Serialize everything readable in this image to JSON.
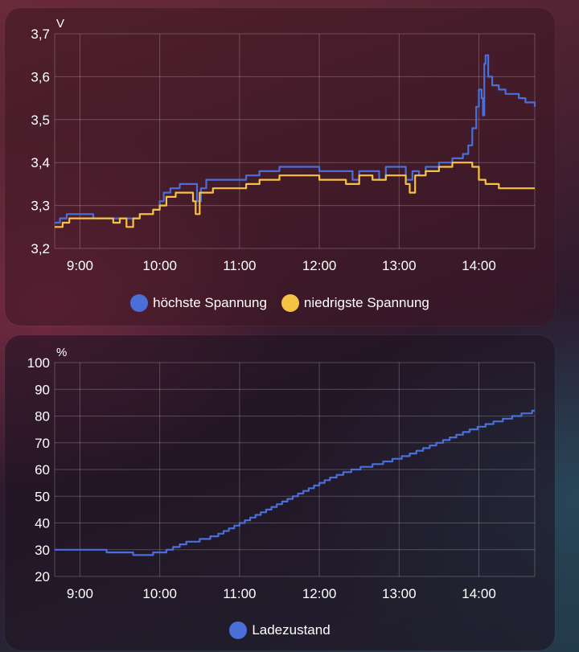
{
  "chart_data": [
    {
      "type": "line",
      "ylabel": "V",
      "ylim": [
        3.2,
        3.7
      ],
      "yticks": [
        "3,7",
        "3,6",
        "3,5",
        "3,4",
        "3,3",
        "3,2"
      ],
      "ytick_values": [
        3.7,
        3.6,
        3.5,
        3.4,
        3.3,
        3.2
      ],
      "xlim": [
        "08:41",
        "14:42"
      ],
      "xticks": [
        "9:00",
        "10:00",
        "11:00",
        "12:00",
        "13:00",
        "14:00"
      ],
      "grid": true,
      "legend": "bottom-center",
      "series": [
        {
          "name": "höchste Spannung",
          "color": "#4a6fd8",
          "step": true,
          "points": [
            [
              "08:41",
              3.26
            ],
            [
              "08:45",
              3.27
            ],
            [
              "08:50",
              3.28
            ],
            [
              "09:05",
              3.28
            ],
            [
              "09:10",
              3.27
            ],
            [
              "09:30",
              3.27
            ],
            [
              "09:40",
              3.27
            ],
            [
              "09:45",
              3.28
            ],
            [
              "09:55",
              3.29
            ],
            [
              "10:00",
              3.31
            ],
            [
              "10:03",
              3.33
            ],
            [
              "10:08",
              3.34
            ],
            [
              "10:15",
              3.35
            ],
            [
              "10:25",
              3.35
            ],
            [
              "10:28",
              3.31
            ],
            [
              "10:31",
              3.34
            ],
            [
              "10:35",
              3.36
            ],
            [
              "10:50",
              3.36
            ],
            [
              "11:00",
              3.36
            ],
            [
              "11:05",
              3.37
            ],
            [
              "11:15",
              3.38
            ],
            [
              "11:30",
              3.39
            ],
            [
              "11:45",
              3.39
            ],
            [
              "12:00",
              3.38
            ],
            [
              "12:10",
              3.38
            ],
            [
              "12:20",
              3.38
            ],
            [
              "12:25",
              3.36
            ],
            [
              "12:30",
              3.38
            ],
            [
              "12:40",
              3.38
            ],
            [
              "12:45",
              3.36
            ],
            [
              "12:50",
              3.39
            ],
            [
              "13:00",
              3.39
            ],
            [
              "13:05",
              3.36
            ],
            [
              "13:10",
              3.38
            ],
            [
              "13:15",
              3.37
            ],
            [
              "13:20",
              3.39
            ],
            [
              "13:30",
              3.4
            ],
            [
              "13:40",
              3.41
            ],
            [
              "13:48",
              3.42
            ],
            [
              "13:52",
              3.44
            ],
            [
              "13:55",
              3.48
            ],
            [
              "13:58",
              3.53
            ],
            [
              "14:00",
              3.57
            ],
            [
              "14:02",
              3.55
            ],
            [
              "14:03",
              3.51
            ],
            [
              "14:04",
              3.63
            ],
            [
              "14:05",
              3.65
            ],
            [
              "14:07",
              3.6
            ],
            [
              "14:10",
              3.58
            ],
            [
              "14:15",
              3.57
            ],
            [
              "14:20",
              3.56
            ],
            [
              "14:30",
              3.55
            ],
            [
              "14:35",
              3.54
            ],
            [
              "14:40",
              3.54
            ],
            [
              "14:42",
              3.53
            ]
          ]
        },
        {
          "name": "niedrigste Spannung",
          "color": "#f6c244",
          "step": true,
          "points": [
            [
              "08:41",
              3.25
            ],
            [
              "08:47",
              3.26
            ],
            [
              "08:52",
              3.27
            ],
            [
              "09:05",
              3.27
            ],
            [
              "09:15",
              3.27
            ],
            [
              "09:25",
              3.26
            ],
            [
              "09:30",
              3.27
            ],
            [
              "09:35",
              3.25
            ],
            [
              "09:40",
              3.27
            ],
            [
              "09:45",
              3.28
            ],
            [
              "09:55",
              3.29
            ],
            [
              "10:00",
              3.3
            ],
            [
              "10:05",
              3.32
            ],
            [
              "10:12",
              3.33
            ],
            [
              "10:20",
              3.33
            ],
            [
              "10:25",
              3.31
            ],
            [
              "10:27",
              3.28
            ],
            [
              "10:30",
              3.33
            ],
            [
              "10:40",
              3.34
            ],
            [
              "10:55",
              3.34
            ],
            [
              "11:05",
              3.35
            ],
            [
              "11:15",
              3.36
            ],
            [
              "11:30",
              3.37
            ],
            [
              "11:45",
              3.37
            ],
            [
              "12:00",
              3.36
            ],
            [
              "12:10",
              3.36
            ],
            [
              "12:20",
              3.35
            ],
            [
              "12:30",
              3.37
            ],
            [
              "12:40",
              3.36
            ],
            [
              "12:50",
              3.37
            ],
            [
              "13:00",
              3.37
            ],
            [
              "13:05",
              3.35
            ],
            [
              "13:08",
              3.33
            ],
            [
              "13:12",
              3.37
            ],
            [
              "13:20",
              3.38
            ],
            [
              "13:30",
              3.39
            ],
            [
              "13:40",
              3.4
            ],
            [
              "13:50",
              3.4
            ],
            [
              "13:55",
              3.39
            ],
            [
              "14:00",
              3.36
            ],
            [
              "14:05",
              3.35
            ],
            [
              "14:10",
              3.35
            ],
            [
              "14:15",
              3.34
            ],
            [
              "14:42",
              3.34
            ]
          ]
        }
      ]
    },
    {
      "type": "line",
      "ylabel": "%",
      "ylim": [
        20,
        100
      ],
      "yticks": [
        "100",
        "90",
        "80",
        "70",
        "60",
        "50",
        "40",
        "30",
        "20"
      ],
      "ytick_values": [
        100,
        90,
        80,
        70,
        60,
        50,
        40,
        30,
        20
      ],
      "xlim": [
        "08:41",
        "14:42"
      ],
      "xticks": [
        "9:00",
        "10:00",
        "11:00",
        "12:00",
        "13:00",
        "14:00"
      ],
      "grid": true,
      "legend": "bottom-center",
      "series": [
        {
          "name": "Ladezustand",
          "color": "#4a6fd8",
          "step": true,
          "points": [
            [
              "08:41",
              30
            ],
            [
              "09:20",
              29
            ],
            [
              "09:40",
              28
            ],
            [
              "09:55",
              29
            ],
            [
              "10:05",
              30
            ],
            [
              "10:10",
              31
            ],
            [
              "10:15",
              32
            ],
            [
              "10:20",
              33
            ],
            [
              "10:30",
              34
            ],
            [
              "10:38",
              35
            ],
            [
              "10:44",
              36
            ],
            [
              "10:48",
              37
            ],
            [
              "10:52",
              38
            ],
            [
              "10:56",
              39
            ],
            [
              "11:00",
              40
            ],
            [
              "11:04",
              41
            ],
            [
              "11:08",
              42
            ],
            [
              "11:12",
              43
            ],
            [
              "11:16",
              44
            ],
            [
              "11:20",
              45
            ],
            [
              "11:24",
              46
            ],
            [
              "11:28",
              47
            ],
            [
              "11:32",
              48
            ],
            [
              "11:36",
              49
            ],
            [
              "11:40",
              50
            ],
            [
              "11:44",
              51
            ],
            [
              "11:48",
              52
            ],
            [
              "11:52",
              53
            ],
            [
              "11:56",
              54
            ],
            [
              "12:00",
              55
            ],
            [
              "12:04",
              56
            ],
            [
              "12:08",
              57
            ],
            [
              "12:13",
              58
            ],
            [
              "12:18",
              59
            ],
            [
              "12:24",
              60
            ],
            [
              "12:31",
              61
            ],
            [
              "12:40",
              62
            ],
            [
              "12:48",
              63
            ],
            [
              "12:55",
              64
            ],
            [
              "13:02",
              65
            ],
            [
              "13:08",
              66
            ],
            [
              "13:13",
              67
            ],
            [
              "13:18",
              68
            ],
            [
              "13:23",
              69
            ],
            [
              "13:28",
              70
            ],
            [
              "13:33",
              71
            ],
            [
              "13:38",
              72
            ],
            [
              "13:43",
              73
            ],
            [
              "13:48",
              74
            ],
            [
              "13:53",
              75
            ],
            [
              "13:59",
              76
            ],
            [
              "14:05",
              77
            ],
            [
              "14:11",
              78
            ],
            [
              "14:18",
              79
            ],
            [
              "14:25",
              80
            ],
            [
              "14:32",
              81
            ],
            [
              "14:40",
              82
            ],
            [
              "14:42",
              82
            ]
          ]
        }
      ]
    }
  ]
}
